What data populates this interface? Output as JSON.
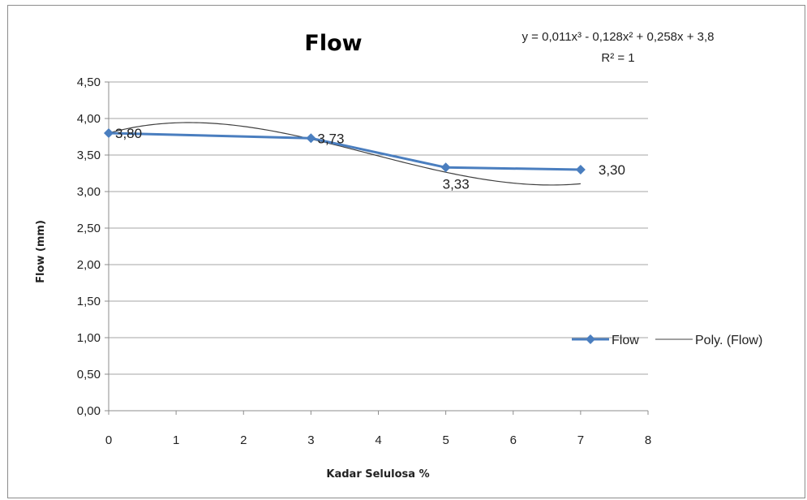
{
  "chart_data": {
    "type": "line",
    "title": "Flow",
    "xlabel": "Kadar Selulosa %",
    "ylabel": "Flow (mm)",
    "xlim": [
      0,
      8
    ],
    "ylim": [
      0,
      4.5
    ],
    "x_ticks": [
      "0",
      "1",
      "2",
      "3",
      "4",
      "5",
      "6",
      "7",
      "8"
    ],
    "y_ticks": [
      "0,00",
      "0,50",
      "1,00",
      "1,50",
      "2,00",
      "2,50",
      "3,00",
      "3,50",
      "4,00",
      "4,50"
    ],
    "grid": true,
    "legend_position": "right",
    "series": [
      {
        "name": "Flow",
        "color": "#4a7ebf",
        "marker": "diamond",
        "x": [
          0,
          3,
          5,
          7
        ],
        "values": [
          3.8,
          3.73,
          3.33,
          3.3
        ],
        "labels": [
          "3,80",
          "3,73",
          "3,33",
          "3,30"
        ]
      }
    ],
    "trendline": {
      "name": "Poly. (Flow)",
      "color": "#404040",
      "type": "polynomial",
      "equation": "y = 0,011x³ - 0,128x² + 0,258x + 3,8",
      "r_squared": "R² = 1",
      "coefficients": [
        0.011,
        -0.128,
        0.258,
        3.8
      ]
    }
  }
}
